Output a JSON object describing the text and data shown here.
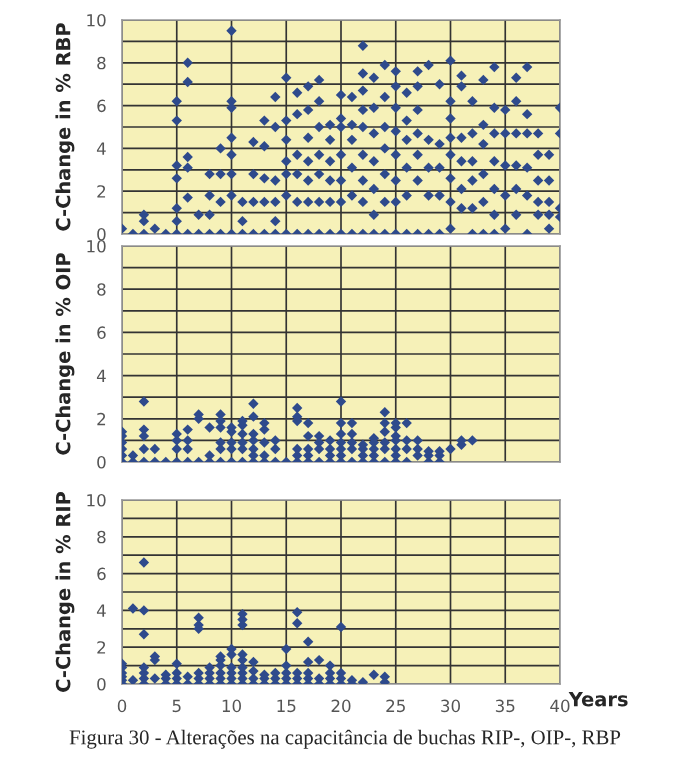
{
  "chart_data": [
    {
      "type": "scatter",
      "ylabel": "C-Change in % RBP",
      "xlim": [
        0,
        40
      ],
      "ylim": [
        0,
        10
      ],
      "xticks": [
        0,
        5,
        10,
        15,
        20,
        25,
        30,
        35,
        40
      ],
      "yticks": [
        0,
        {
          "value": 1,
          "label": null
        },
        2,
        {
          "value": 3,
          "label": null
        },
        4,
        {
          "value": 5,
          "label": null
        },
        6,
        {
          "value": 7,
          "label": null
        },
        8,
        {
          "value": 9,
          "label": null
        },
        10
      ],
      "tick_labels": "y",
      "grid": true,
      "marker": "diamond",
      "series": [
        {
          "color": "#2e4a8c",
          "x": [
            0,
            1,
            2,
            2,
            2,
            3,
            4,
            5,
            5,
            5,
            5,
            5,
            5,
            5,
            6,
            6,
            6,
            6,
            6,
            6,
            7,
            7,
            8,
            8,
            8,
            8,
            9,
            9,
            9,
            9,
            10,
            10,
            10,
            10,
            10,
            10,
            10,
            10,
            11,
            11,
            11,
            12,
            12,
            12,
            12,
            13,
            13,
            13,
            13,
            13,
            14,
            14,
            14,
            14,
            14,
            14,
            15,
            15,
            15,
            15,
            15,
            15,
            15,
            16,
            16,
            16,
            16,
            16,
            16,
            17,
            17,
            17,
            17,
            17,
            17,
            17,
            18,
            18,
            18,
            18,
            18,
            18,
            18,
            19,
            19,
            19,
            19,
            19,
            19,
            20,
            20,
            20,
            20,
            20,
            20,
            20,
            21,
            21,
            21,
            21,
            21,
            21,
            22,
            22,
            22,
            22,
            22,
            22,
            22,
            22,
            22,
            23,
            23,
            23,
            23,
            23,
            23,
            23,
            24,
            24,
            24,
            24,
            24,
            24,
            24,
            25,
            25,
            25,
            25,
            25,
            25,
            25,
            25,
            26,
            26,
            26,
            26,
            26,
            26,
            27,
            27,
            27,
            27,
            27,
            27,
            27,
            28,
            28,
            28,
            28,
            28,
            29,
            29,
            29,
            29,
            29,
            30,
            30,
            30,
            30,
            30,
            30,
            30,
            30,
            31,
            31,
            31,
            31,
            31,
            31,
            32,
            32,
            32,
            32,
            32,
            32,
            33,
            33,
            33,
            33,
            33,
            33,
            34,
            34,
            34,
            34,
            34,
            34,
            34,
            35,
            35,
            35,
            35,
            35,
            36,
            36,
            36,
            36,
            36,
            36,
            37,
            37,
            37,
            37,
            37,
            37,
            38,
            38,
            38,
            38,
            38,
            39,
            39,
            39,
            39,
            39,
            40,
            40,
            40,
            40
          ],
          "values": [
            0.25,
            0,
            0.9,
            0.6,
            0,
            0.25,
            0,
            6.2,
            5.3,
            3.2,
            2.6,
            1.2,
            0.6,
            0,
            8.0,
            7.1,
            3.6,
            3.1,
            1.7,
            0,
            0.9,
            0,
            2.8,
            1.8,
            0.9,
            0,
            4.0,
            2.8,
            1.5,
            0,
            9.5,
            6.2,
            5.9,
            4.5,
            3.7,
            2.8,
            1.8,
            0,
            1.5,
            0.6,
            0,
            4.3,
            2.8,
            1.5,
            0,
            5.3,
            4.1,
            2.6,
            1.5,
            0,
            6.4,
            5.0,
            2.5,
            1.5,
            0.6,
            0,
            7.3,
            5.3,
            4.4,
            3.4,
            2.8,
            1.8,
            0,
            6.6,
            5.6,
            3.7,
            2.8,
            1.5,
            0,
            6.9,
            5.8,
            4.5,
            3.4,
            2.5,
            1.5,
            0,
            7.2,
            6.2,
            5.0,
            3.7,
            2.8,
            1.5,
            0,
            5.1,
            4.4,
            3.4,
            2.5,
            1.5,
            0,
            6.5,
            5.4,
            5.0,
            3.7,
            2.5,
            1.5,
            0,
            6.4,
            5.1,
            4.4,
            3.1,
            1.8,
            0,
            8.8,
            7.5,
            6.7,
            5.8,
            5.0,
            3.7,
            2.5,
            1.5,
            0,
            7.3,
            5.9,
            4.7,
            3.4,
            2.1,
            0.9,
            0,
            7.9,
            6.4,
            5.0,
            4.0,
            2.8,
            1.5,
            0,
            7.6,
            6.9,
            5.9,
            4.8,
            3.7,
            2.5,
            1.5,
            0,
            6.6,
            5.3,
            4.4,
            3.1,
            1.8,
            0,
            7.6,
            6.9,
            5.8,
            4.7,
            3.7,
            2.5,
            0,
            7.9,
            4.4,
            3.1,
            1.8,
            0,
            7.0,
            4.2,
            3.1,
            1.8,
            0,
            8.1,
            6.2,
            5.4,
            4.5,
            3.7,
            2.6,
            1.5,
            0.25,
            7.4,
            6.9,
            4.5,
            3.4,
            2.1,
            1.2,
            6.2,
            4.7,
            3.4,
            2.5,
            1.2,
            0,
            7.2,
            5.1,
            4.2,
            2.8,
            1.5,
            0,
            7.8,
            5.9,
            4.7,
            3.4,
            2.1,
            0.9,
            0,
            5.8,
            4.7,
            3.2,
            1.8,
            0.25,
            7.3,
            6.2,
            4.7,
            3.2,
            2.1,
            0.9,
            7.8,
            5.6,
            4.7,
            3.1,
            1.8,
            0,
            4.7,
            3.7,
            2.5,
            1.5,
            0.9,
            3.7,
            2.5,
            1.5,
            0.9,
            0.25,
            5.9,
            4.7,
            1.2,
            0.8
          ]
        }
      ]
    },
    {
      "type": "scatter",
      "ylabel": "C-Change in % OIP",
      "xlim": [
        0,
        40
      ],
      "ylim": [
        0,
        10
      ],
      "xticks": [
        0,
        5,
        10,
        15,
        20,
        25,
        30,
        35,
        40
      ],
      "yticks": [
        0,
        {
          "value": 1,
          "label": null
        },
        2,
        {
          "value": 3,
          "label": null
        },
        4,
        {
          "value": 5,
          "label": null
        },
        6,
        {
          "value": 7,
          "label": null
        },
        8,
        {
          "value": 9,
          "label": null
        },
        10
      ],
      "tick_labels": "y",
      "grid": true,
      "marker": "diamond",
      "series": [
        {
          "color": "#2e4a8c",
          "x": [
            0,
            0,
            0,
            0,
            0,
            0,
            1,
            1,
            2,
            2,
            2,
            2,
            2,
            3,
            3,
            4,
            5,
            5,
            5,
            5,
            6,
            6,
            6,
            6,
            7,
            7,
            7,
            8,
            8,
            8,
            9,
            9,
            9,
            9,
            9,
            9,
            10,
            10,
            10,
            10,
            10,
            11,
            11,
            11,
            11,
            11,
            11,
            12,
            12,
            12,
            12,
            12,
            12,
            12,
            13,
            13,
            13,
            13,
            13,
            14,
            14,
            14,
            15,
            16,
            16,
            16,
            16,
            16,
            16,
            17,
            17,
            17,
            17,
            17,
            18,
            18,
            18,
            18,
            19,
            19,
            19,
            19,
            20,
            20,
            20,
            20,
            20,
            20,
            20,
            21,
            21,
            21,
            21,
            21,
            22,
            22,
            22,
            22,
            23,
            23,
            23,
            23,
            23,
            24,
            24,
            24,
            24,
            24,
            24,
            25,
            25,
            25,
            25,
            25,
            25,
            25,
            26,
            26,
            26,
            26,
            27,
            27,
            27,
            28,
            28,
            28,
            29,
            29,
            29,
            30,
            31,
            31,
            32
          ],
          "values": [
            0,
            0.3,
            0.6,
            0.9,
            1.2,
            1.4,
            0,
            0.3,
            2.8,
            1.5,
            1.2,
            0.6,
            0,
            0,
            0.6,
            0,
            0,
            0.6,
            1.0,
            1.3,
            0,
            0.6,
            1.0,
            1.5,
            0,
            2.0,
            2.2,
            0,
            0.3,
            1.6,
            0,
            0.6,
            0.9,
            1.6,
            1.9,
            2.2,
            0,
            0.6,
            0.9,
            1.4,
            1.6,
            0,
            0.6,
            0.9,
            1.3,
            1.7,
            1.9,
            0,
            0.3,
            0.6,
            1.0,
            1.3,
            2.1,
            2.7,
            0,
            0.3,
            0.9,
            1.5,
            1.8,
            0,
            0.6,
            1.0,
            0,
            0,
            0.3,
            0.6,
            1.9,
            2.1,
            2.5,
            0,
            0.3,
            0.6,
            1.2,
            1.8,
            0,
            0.6,
            0.9,
            1.2,
            0,
            0.3,
            0.6,
            1.0,
            0,
            0.3,
            0.6,
            0.9,
            1.3,
            1.8,
            2.8,
            0,
            0.6,
            0.9,
            1.3,
            1.8,
            0,
            0.3,
            0.6,
            0.8,
            0,
            0.3,
            0.6,
            0.9,
            1.1,
            0,
            0.6,
            0.9,
            1.4,
            1.8,
            2.3,
            0,
            0.3,
            0.6,
            1.0,
            1.2,
            1.6,
            1.8,
            0,
            0.6,
            1.0,
            1.8,
            0.3,
            0.6,
            1.0,
            0,
            0.3,
            0.5,
            0,
            0.3,
            0.5,
            0.6,
            0.8,
            1.0,
            1.0
          ]
        }
      ]
    },
    {
      "type": "scatter",
      "ylabel": "C-Change in % RIP",
      "xlabel": "Years",
      "xlim": [
        0,
        40
      ],
      "ylim": [
        0,
        10
      ],
      "xticks": [
        0,
        5,
        10,
        15,
        20,
        25,
        30,
        35,
        40
      ],
      "yticks": [
        0,
        {
          "value": 1,
          "label": null
        },
        2,
        {
          "value": 3,
          "label": null
        },
        4,
        {
          "value": 5,
          "label": null
        },
        6,
        {
          "value": 7,
          "label": null
        },
        8,
        {
          "value": 9,
          "label": null
        },
        10
      ],
      "grid": true,
      "marker": "diamond",
      "annotations": [
        "Figura 30 - Alterações na capacitância de buchas RIP-, OIP-, RBP"
      ],
      "series": [
        {
          "color": "#2e4a8c",
          "x": [
            0,
            0,
            0,
            0,
            0,
            0,
            1,
            1,
            2,
            2,
            2,
            2,
            2,
            2,
            2,
            3,
            3,
            3,
            4,
            4,
            4,
            5,
            5,
            5,
            5,
            6,
            6,
            7,
            7,
            7,
            7,
            7,
            7,
            8,
            8,
            8,
            8,
            9,
            9,
            9,
            9,
            9,
            9,
            10,
            10,
            10,
            10,
            10,
            10,
            11,
            11,
            11,
            11,
            11,
            11,
            11,
            11,
            11,
            12,
            12,
            12,
            12,
            13,
            13,
            13,
            14,
            14,
            14,
            15,
            15,
            15,
            15,
            15,
            16,
            16,
            16,
            16,
            16,
            17,
            17,
            17,
            17,
            17,
            18,
            18,
            18,
            19,
            19,
            19,
            19,
            20,
            20,
            20,
            20,
            21,
            21,
            22,
            23,
            24,
            24
          ],
          "values": [
            0,
            0.2,
            0.4,
            0.6,
            0.9,
            1.1,
            0.2,
            4.1,
            0,
            0.3,
            0.6,
            0.9,
            2.7,
            4.0,
            6.6,
            0.3,
            1.3,
            1.5,
            0,
            0.3,
            0.5,
            0,
            0.3,
            0.6,
            1.1,
            0,
            0.4,
            0,
            0.3,
            0.6,
            3.0,
            3.2,
            3.6,
            0,
            0.3,
            0.6,
            0.9,
            0,
            0.3,
            0.6,
            1.0,
            1.3,
            1.5,
            0,
            0.3,
            0.6,
            0.9,
            1.6,
            1.9,
            0,
            0.3,
            0.6,
            0.9,
            1.3,
            1.6,
            3.2,
            3.5,
            3.8,
            0,
            0.3,
            0.7,
            1.2,
            0,
            0.3,
            0.5,
            0,
            0.3,
            0.6,
            0,
            0.3,
            0.6,
            1.0,
            1.9,
            0,
            0.3,
            0.6,
            3.3,
            3.9,
            0,
            0.3,
            0.6,
            1.2,
            2.3,
            0,
            0.3,
            1.3,
            0,
            0.3,
            0.6,
            1.0,
            0,
            0.3,
            0.6,
            3.1,
            0,
            0.2,
            0.1,
            0.5,
            0.1,
            0.4
          ]
        }
      ]
    }
  ]
}
